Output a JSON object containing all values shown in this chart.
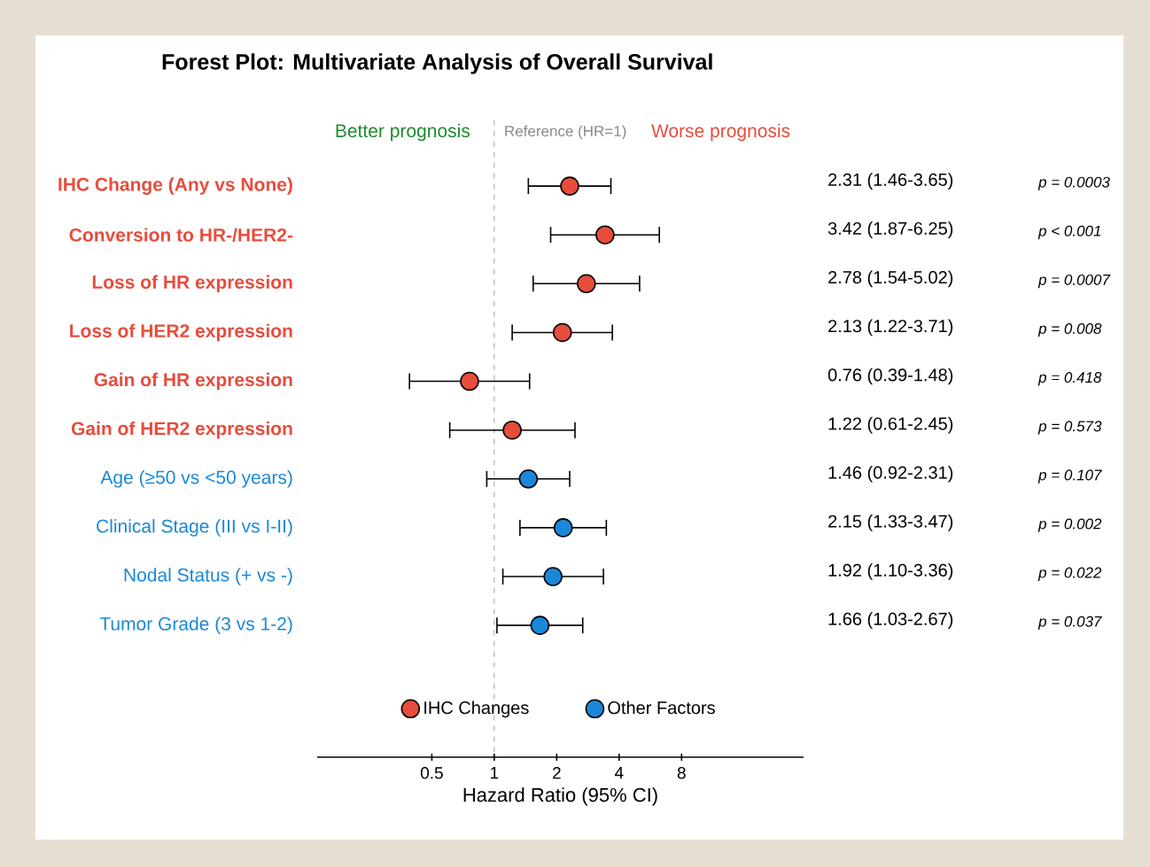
{
  "chart_data": {
    "type": "scatter",
    "title": "Forest Plot: Multivariate Analysis of Overall Survival",
    "xlabel": "Hazard Ratio (95% CI)",
    "orientation": "horizontal",
    "categories": [
      "IHC Change (Any vs None)",
      "Conversion to HR-/HER2-",
      "Loss of HR expression",
      "Loss of HER2 expression",
      "Gain of HR expression",
      "Gain of HER2 expression",
      "Age (≥50 vs <50 years)",
      "Clinical Stage (III vs I-II)",
      "Nodal Status (+ vs -)",
      "Tumor Grade (3 vs 1-2)"
    ],
    "series": [
      {
        "name": "IHC Changes",
        "color": "#e74c3c",
        "values": [
          2.31,
          3.42,
          2.78,
          2.13,
          0.76,
          1.22,
          null,
          null,
          null,
          null
        ],
        "errors": [
          [
            1.46,
            3.65
          ],
          [
            1.87,
            6.25
          ],
          [
            1.54,
            5.02
          ],
          [
            1.22,
            3.71
          ],
          [
            0.39,
            1.48
          ],
          [
            0.61,
            2.45
          ],
          null,
          null,
          null,
          null
        ]
      },
      {
        "name": "Other Factors",
        "color": "#1a87d9",
        "values": [
          null,
          null,
          null,
          null,
          null,
          null,
          1.46,
          2.15,
          1.92,
          1.66
        ],
        "errors": [
          null,
          null,
          null,
          null,
          null,
          null,
          [
            0.92,
            2.31
          ],
          [
            1.33,
            3.47
          ],
          [
            1.1,
            3.36
          ],
          [
            1.03,
            2.67
          ]
        ]
      }
    ],
    "annotations": [
      "Better prognosis",
      "Worse prognosis",
      "2.31 (1.46-3.65)",
      "p = 0.0003",
      "3.42 (1.87-6.25)",
      "p < 0.001",
      "2.78 (1.54-5.02)",
      "p = 0.0007",
      "2.13 (1.22-3.71)",
      "p = 0.008",
      "0.76 (0.39-1.48)",
      "p = 0.418",
      "1.22 (0.61-2.45)",
      "p = 0.573",
      "1.46 (0.92-2.31)",
      "p = 0.107",
      "2.15 (1.33-3.47)",
      "p = 0.002",
      "1.92 (1.10-3.36)",
      "p = 0.022",
      "1.66 (1.03-2.67)",
      "p = 0.037"
    ],
    "ref_lines": [
      {
        "axis": "x",
        "value": 1,
        "label": "Reference (HR=1)",
        "color": "#888888",
        "line_style": "dashed"
      }
    ],
    "log": "x",
    "xlim": [
      0.14,
      31
    ],
    "xticks": [
      0.5,
      1,
      2,
      4,
      8
    ],
    "legend": "bottom",
    "grid": false
  }
}
